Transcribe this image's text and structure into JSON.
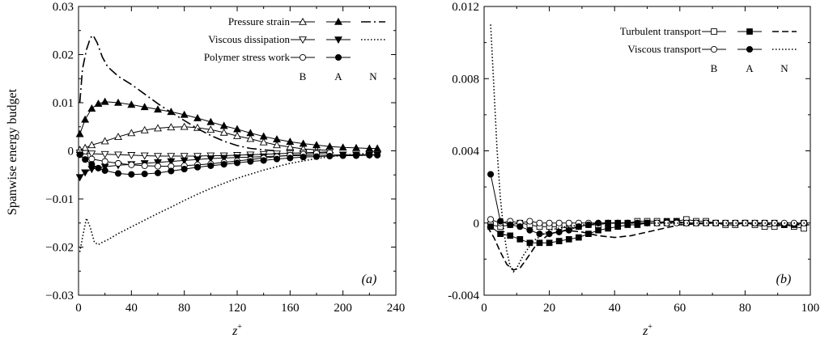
{
  "chart_data": [
    {
      "type": "line",
      "panel_label": "(a)",
      "xlabel": "z+",
      "ylabel": "Spanwise energy budget",
      "xlim": [
        0,
        240
      ],
      "ylim": [
        -0.03,
        0.03
      ],
      "xticks": [
        "0",
        "40",
        "80",
        "120",
        "160",
        "200",
        "240"
      ],
      "yticks": [
        "0.03",
        "0.02",
        "0.01",
        "0",
        "−0.01",
        "−0.02",
        "−0.03"
      ],
      "legend": {
        "placement": "top-right",
        "rows": [
          "Pressure strain",
          "Viscous dissipation",
          "Polymer stress work"
        ],
        "columns": [
          "B",
          "A",
          "N"
        ]
      },
      "series": [
        {
          "name": "Pressure strain",
          "case": "B",
          "marker": "triangle-up-open",
          "line": "solid",
          "x": [
            1,
            5,
            10,
            20,
            30,
            40,
            50,
            60,
            70,
            80,
            90,
            100,
            110,
            120,
            130,
            140,
            150,
            160,
            170,
            180,
            190
          ],
          "y": [
            0.0002,
            0.0006,
            0.0012,
            0.002,
            0.0029,
            0.0037,
            0.0043,
            0.0047,
            0.0049,
            0.005,
            0.0048,
            0.0044,
            0.0038,
            0.0031,
            0.0025,
            0.0018,
            0.0012,
            0.0008,
            0.0004,
            0.0002,
            0.0001
          ]
        },
        {
          "name": "Pressure strain",
          "case": "A",
          "marker": "triangle-up-filled",
          "line": "solid",
          "x": [
            1,
            5,
            10,
            15,
            20,
            30,
            40,
            50,
            60,
            70,
            80,
            90,
            100,
            110,
            120,
            130,
            140,
            150,
            160,
            170,
            180,
            190,
            200,
            210,
            220,
            226
          ],
          "y": [
            0.0035,
            0.0065,
            0.0088,
            0.0098,
            0.0102,
            0.01,
            0.0096,
            0.0091,
            0.0086,
            0.0081,
            0.0075,
            0.0068,
            0.006,
            0.0052,
            0.0045,
            0.0037,
            0.003,
            0.0024,
            0.0019,
            0.0015,
            0.0012,
            0.0009,
            0.0007,
            0.0006,
            0.0005,
            0.0005
          ]
        },
        {
          "name": "Pressure strain",
          "case": "N",
          "marker": "none",
          "line": "dash-dot",
          "x": [
            1,
            3,
            6,
            9,
            11,
            14,
            18,
            22,
            30,
            40,
            50,
            60,
            70,
            80,
            90,
            100,
            110,
            120,
            130,
            140,
            150
          ],
          "y": [
            0.01,
            0.017,
            0.021,
            0.0235,
            0.024,
            0.0225,
            0.0195,
            0.0175,
            0.0155,
            0.0138,
            0.0118,
            0.0098,
            0.008,
            0.0063,
            0.0046,
            0.0032,
            0.002,
            0.0011,
            0.0005,
            0.0002,
            0.0
          ]
        },
        {
          "name": "Viscous dissipation",
          "case": "B",
          "marker": "triangle-down-open",
          "line": "solid",
          "x": [
            1,
            5,
            10,
            20,
            30,
            40,
            50,
            60,
            70,
            80,
            90,
            100,
            110,
            120,
            130,
            140,
            150,
            160,
            170,
            180,
            190
          ],
          "y": [
            -0.0004,
            -0.0005,
            -0.0006,
            -0.0007,
            -0.0008,
            -0.0009,
            -0.001,
            -0.0011,
            -0.0011,
            -0.0011,
            -0.0011,
            -0.001,
            -0.001,
            -0.0009,
            -0.0008,
            -0.0007,
            -0.0006,
            -0.0005,
            -0.0004,
            -0.0003,
            -0.0002
          ]
        },
        {
          "name": "Viscous dissipation",
          "case": "A",
          "marker": "triangle-down-filled",
          "line": "solid",
          "x": [
            1,
            5,
            10,
            20,
            30,
            40,
            50,
            60,
            70,
            80,
            90,
            100,
            110,
            120,
            130,
            140,
            150,
            160,
            170,
            180,
            190,
            200,
            210,
            220,
            226
          ],
          "y": [
            -0.0055,
            -0.0045,
            -0.0038,
            -0.0033,
            -0.003,
            -0.0028,
            -0.0026,
            -0.0024,
            -0.0022,
            -0.002,
            -0.0018,
            -0.0016,
            -0.0015,
            -0.0014,
            -0.0013,
            -0.0012,
            -0.0011,
            -0.001,
            -0.001,
            -0.0009,
            -0.0009,
            -0.0008,
            -0.0008,
            -0.0008,
            -0.0008
          ]
        },
        {
          "name": "Viscous dissipation",
          "case": "N",
          "marker": "none",
          "line": "dotted",
          "x": [
            1,
            3,
            6,
            9,
            12,
            15,
            18,
            22,
            30,
            40,
            50,
            60,
            70,
            80,
            90,
            100,
            120,
            140,
            160,
            180,
            200,
            220
          ],
          "y": [
            -0.021,
            -0.018,
            -0.014,
            -0.016,
            -0.019,
            -0.0195,
            -0.019,
            -0.0185,
            -0.0172,
            -0.0158,
            -0.0144,
            -0.013,
            -0.0117,
            -0.0103,
            -0.009,
            -0.0078,
            -0.0057,
            -0.004,
            -0.0026,
            -0.0016,
            -0.0009,
            -0.0005
          ]
        },
        {
          "name": "Polymer stress work",
          "case": "B",
          "marker": "circle-open",
          "line": "solid",
          "x": [
            1,
            5,
            10,
            20,
            30,
            40,
            50,
            60,
            70,
            80,
            90,
            100,
            110,
            120,
            130,
            140,
            150,
            160,
            170,
            180,
            190
          ],
          "y": [
            -0.0008,
            -0.0012,
            -0.0017,
            -0.0022,
            -0.0026,
            -0.0029,
            -0.0031,
            -0.0032,
            -0.0032,
            -0.0031,
            -0.0029,
            -0.0027,
            -0.0024,
            -0.0021,
            -0.0018,
            -0.0015,
            -0.0012,
            -0.0009,
            -0.0007,
            -0.0005,
            -0.0004
          ]
        },
        {
          "name": "Polymer stress work",
          "case": "A",
          "marker": "circle-filled",
          "line": "solid",
          "x": [
            1,
            5,
            10,
            15,
            20,
            30,
            40,
            50,
            60,
            70,
            80,
            90,
            100,
            110,
            120,
            130,
            140,
            150,
            160,
            170,
            180,
            190,
            200,
            210,
            220,
            226
          ],
          "y": [
            -0.0008,
            -0.0018,
            -0.0028,
            -0.0036,
            -0.0041,
            -0.0047,
            -0.0049,
            -0.0048,
            -0.0046,
            -0.0042,
            -0.0038,
            -0.0034,
            -0.0031,
            -0.0028,
            -0.0025,
            -0.0022,
            -0.002,
            -0.0017,
            -0.0015,
            -0.0013,
            -0.0012,
            -0.0011,
            -0.001,
            -0.001,
            -0.0009,
            -0.0009
          ]
        }
      ]
    },
    {
      "type": "line",
      "panel_label": "(b)",
      "xlabel": "z+",
      "ylabel": "",
      "xlim": [
        0,
        100
      ],
      "ylim": [
        -0.004,
        0.012
      ],
      "xticks": [
        "0",
        "20",
        "40",
        "60",
        "80",
        "100"
      ],
      "yticks": [
        "0.012",
        "0.008",
        "0.004",
        "0",
        "-0.004"
      ],
      "legend": {
        "placement": "top-right",
        "rows": [
          "Turbulent transport",
          "Viscous transport"
        ],
        "columns": [
          "B",
          "A",
          "N"
        ]
      },
      "series": [
        {
          "name": "Turbulent transport",
          "case": "B",
          "marker": "square-open",
          "line": "solid",
          "x": [
            2,
            5,
            8,
            11,
            14,
            17,
            20,
            23,
            26,
            29,
            32,
            35,
            38,
            41,
            44,
            47,
            50,
            53,
            56,
            59,
            62,
            65,
            68,
            71,
            74,
            77,
            80,
            83,
            86,
            89,
            92,
            95,
            98
          ],
          "y": [
            -0.0001,
            -0.0002,
            -0.0001,
            0.0,
            -0.0001,
            -0.0002,
            -0.0002,
            -0.0002,
            -0.0003,
            -0.0002,
            -0.0001,
            -0.0001,
            0.0,
            0.0,
            0.0,
            0.0001,
            0.0001,
            0.0001,
            0.0,
            0.0001,
            0.0002,
            0.0001,
            0.0001,
            0.0,
            -0.0001,
            -0.0001,
            0.0,
            -0.0001,
            -0.0002,
            -0.0002,
            -0.0001,
            -0.0002,
            -0.0003
          ]
        },
        {
          "name": "Turbulent transport",
          "case": "A",
          "marker": "square-filled",
          "line": "solid",
          "x": [
            2,
            5,
            8,
            11,
            14,
            17,
            20,
            23,
            26,
            29,
            32,
            35,
            38,
            41,
            44,
            47,
            50,
            53,
            56,
            59,
            62,
            65,
            68,
            71,
            74,
            77,
            80,
            83,
            86,
            89,
            92,
            95,
            98
          ],
          "y": [
            -0.0002,
            -0.0006,
            -0.0007,
            -0.0009,
            -0.0011,
            -0.0011,
            -0.0011,
            -0.001,
            -0.0009,
            -0.0008,
            -0.0006,
            -0.0004,
            -0.0003,
            -0.0002,
            -0.0001,
            -0.0001,
            0.0,
            0.0,
            0.0001,
            0.0001,
            0.0,
            0.0,
            0.0,
            0.0,
            0.0,
            0.0,
            0.0,
            0.0,
            0.0,
            0.0,
            -0.0001,
            -0.0001,
            0.0
          ]
        },
        {
          "name": "Turbulent transport",
          "case": "N",
          "marker": "none",
          "line": "dashed",
          "x": [
            1,
            3,
            5,
            7,
            9,
            11,
            13,
            16,
            20,
            25,
            30,
            35,
            40,
            45,
            50,
            55,
            60,
            70,
            80,
            90,
            100
          ],
          "y": [
            -0.0002,
            -0.0008,
            -0.0016,
            -0.0023,
            -0.0026,
            -0.0025,
            -0.002,
            -0.0012,
            -0.0006,
            -0.0004,
            -0.0005,
            -0.0007,
            -0.0008,
            -0.0007,
            -0.0005,
            -0.0003,
            -0.0001,
            0.0,
            0.0,
            -0.0001,
            -0.0001
          ]
        },
        {
          "name": "Viscous transport",
          "case": "B",
          "marker": "circle-open",
          "line": "solid",
          "x": [
            2,
            5,
            8,
            11,
            14,
            17,
            20,
            23,
            26,
            29,
            32,
            35,
            38,
            41,
            44,
            47,
            50,
            53,
            56,
            59,
            62,
            65,
            68,
            71,
            74,
            77,
            80,
            83,
            86,
            89,
            92,
            95,
            98
          ],
          "y": [
            0.0002,
            0.0,
            0.0001,
            0.0,
            0.0001,
            0.0,
            0.0,
            0.0,
            0.0,
            0.0,
            0.0,
            0.0,
            0.0,
            0.0,
            0.0,
            0.0,
            0.0,
            0.0,
            0.0,
            0.0,
            0.0,
            0.0,
            0.0,
            0.0,
            0.0,
            0.0,
            0.0,
            0.0,
            0.0,
            0.0,
            0.0,
            0.0,
            0.0
          ]
        },
        {
          "name": "Viscous transport",
          "case": "A",
          "marker": "circle-filled",
          "line": "solid",
          "x": [
            2,
            5,
            8,
            11,
            14,
            17,
            20,
            23,
            26,
            29,
            32,
            35,
            38,
            41,
            44,
            47,
            50
          ],
          "y": [
            0.0027,
            0.0001,
            -0.0001,
            -0.0002,
            -0.0004,
            -0.0006,
            -0.0006,
            -0.0005,
            -0.0004,
            -0.0002,
            -0.0001,
            0.0,
            0.0,
            0.0,
            0.0,
            0.0,
            0.0
          ]
        },
        {
          "name": "Viscous transport",
          "case": "N",
          "marker": "none",
          "line": "dotted",
          "x": [
            2,
            3,
            4,
            5,
            6,
            7,
            8,
            9,
            10,
            12,
            15,
            20,
            25,
            30,
            40,
            50,
            60,
            70,
            80,
            90,
            100
          ],
          "y": [
            0.011,
            0.0075,
            0.004,
            0.0014,
            -0.0004,
            -0.0016,
            -0.0024,
            -0.0027,
            -0.0025,
            -0.0018,
            -0.001,
            -0.0004,
            -0.0002,
            -0.0001,
            0.0,
            0.0,
            0.0,
            0.0,
            0.0,
            0.0,
            0.0
          ]
        }
      ]
    }
  ]
}
